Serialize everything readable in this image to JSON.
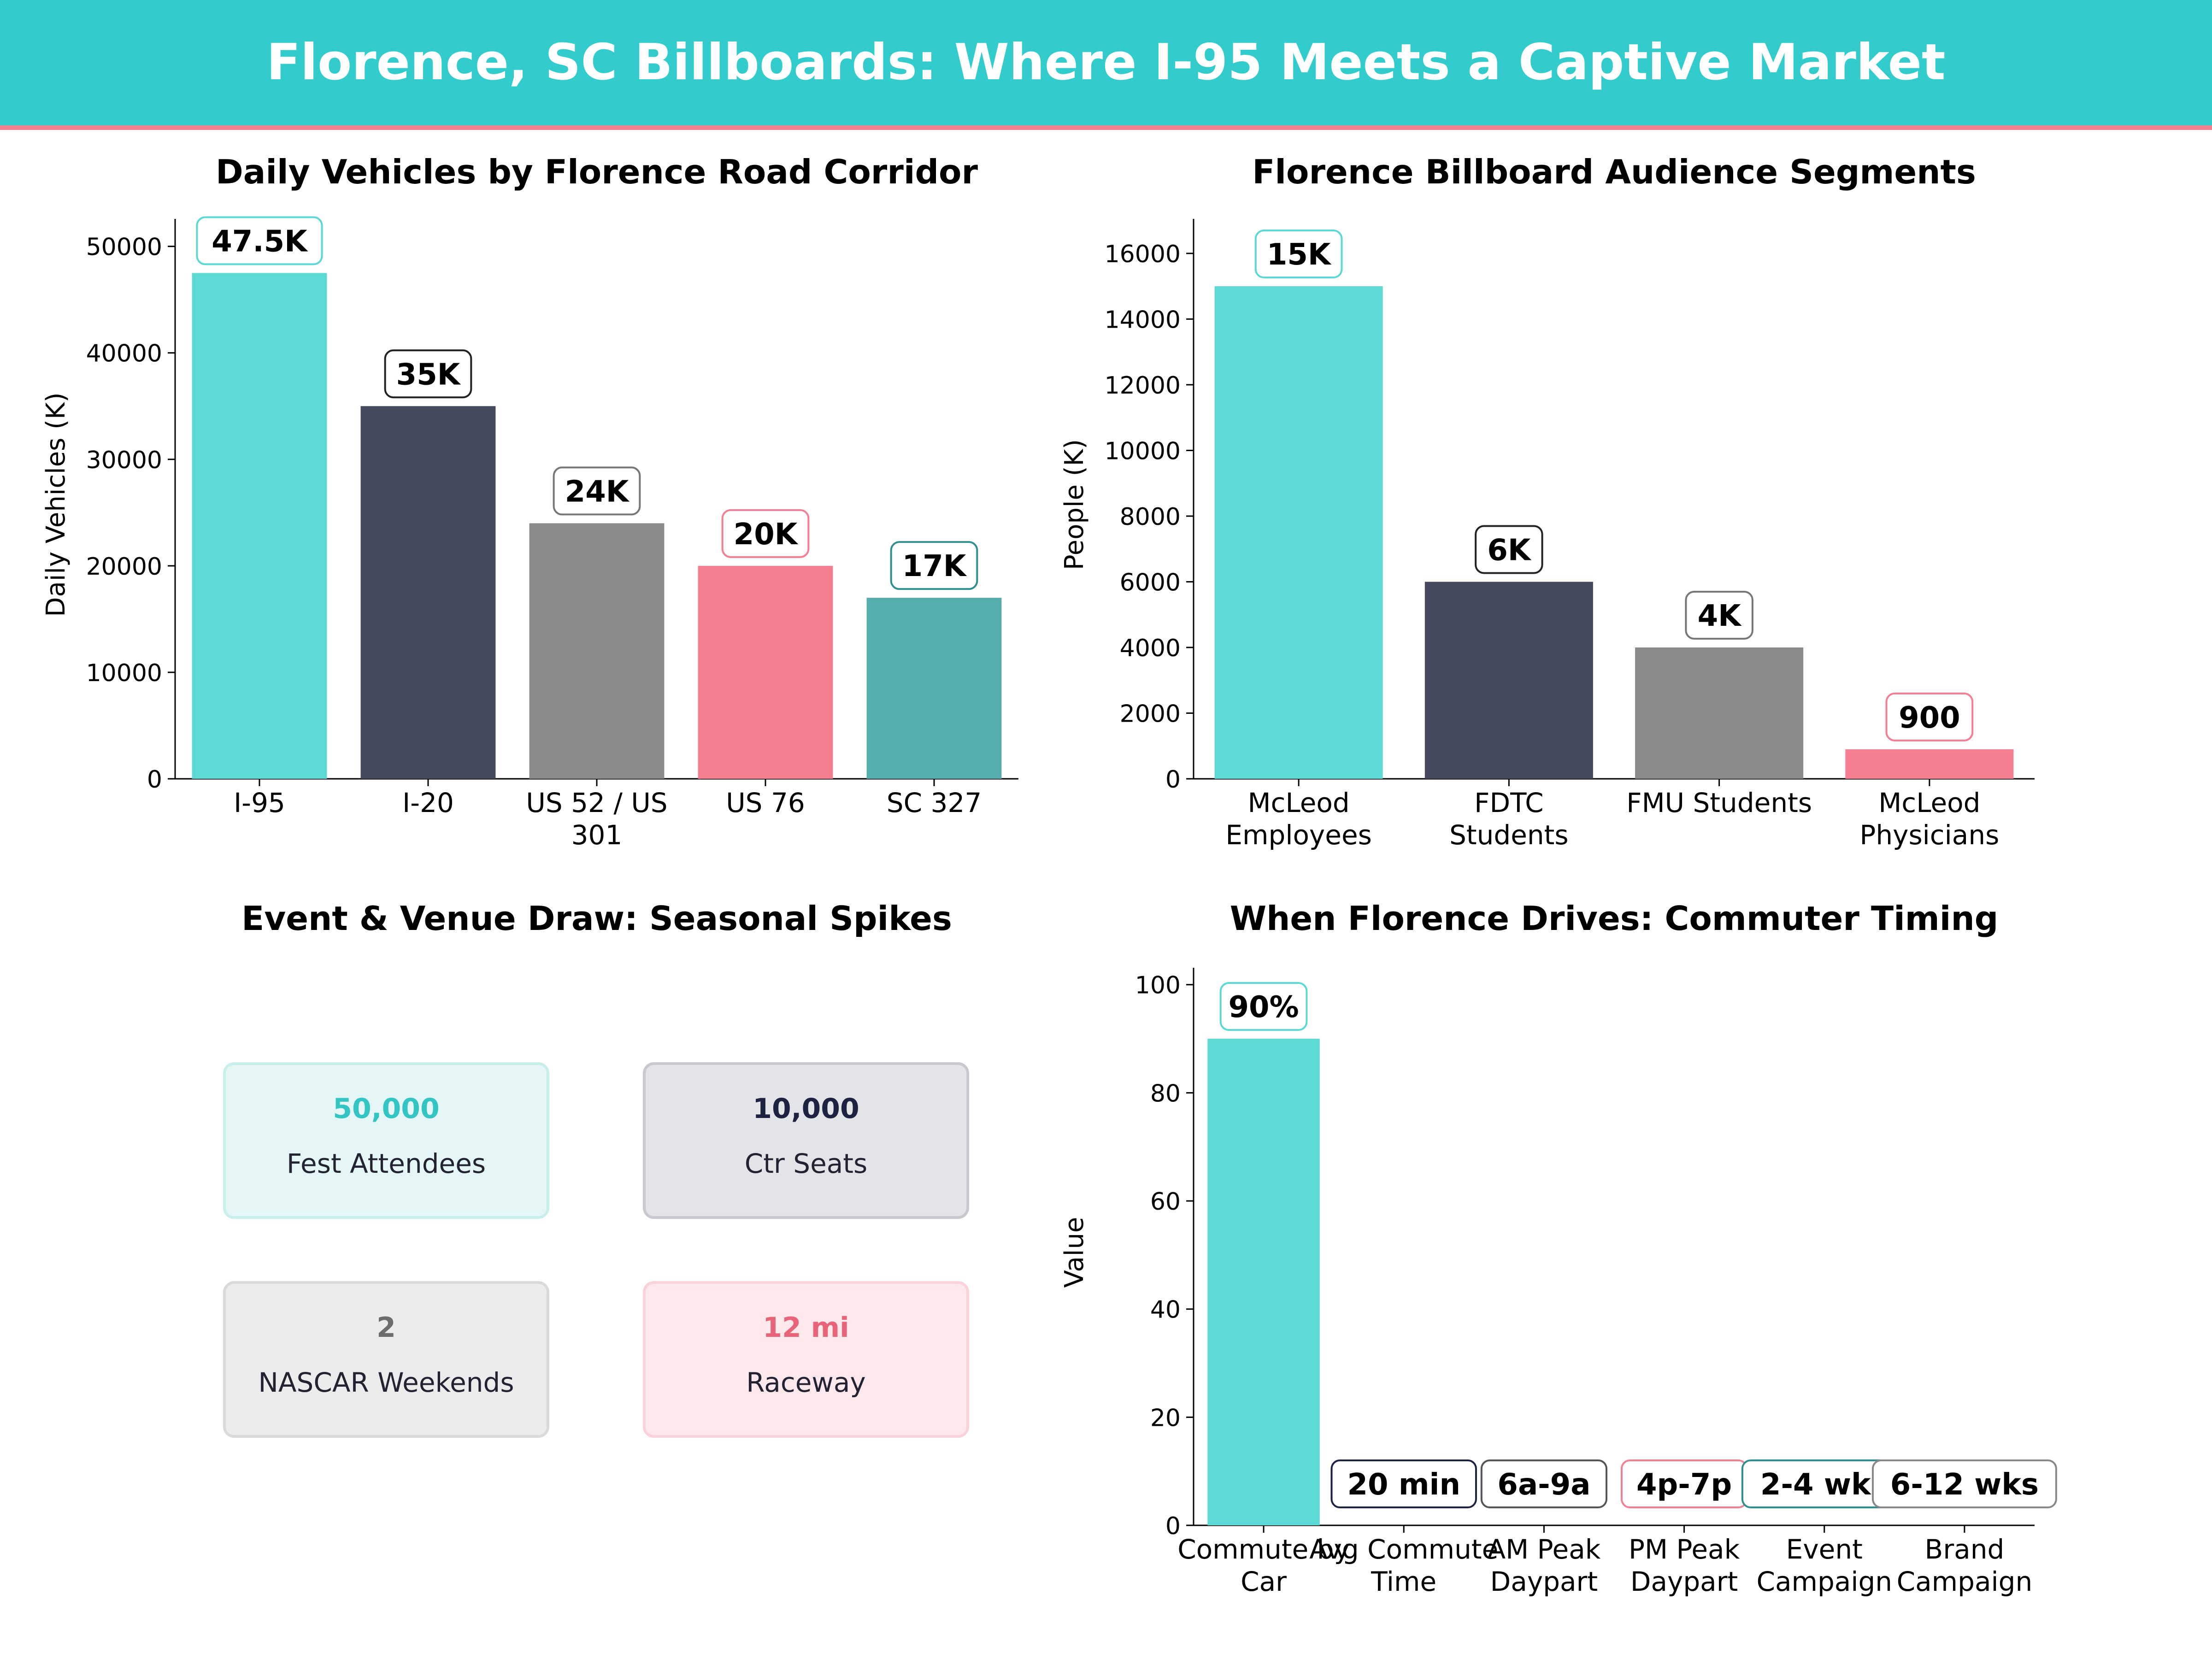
{
  "header": {
    "title": "Florence, SC Billboards: Where I-95 Meets a Captive Market"
  },
  "colors": {
    "teal": "#5cd8d5",
    "navy": "#454a5e",
    "gray": "#8a8a8a",
    "pink": "#f57e93",
    "darkteal": "#56adae",
    "header": "#33cccc"
  },
  "chart_data": [
    {
      "type": "bar",
      "title": "Daily Vehicles by Florence Road Corridor",
      "ylabel": "Daily Vehicles (K)",
      "categories": [
        "I-95",
        "I-20",
        "US 52 / US 301",
        "US 76",
        "SC 327"
      ],
      "values": [
        47500,
        35000,
        24000,
        20000,
        17000
      ],
      "data_labels": [
        "47.5K",
        "35K",
        "24K",
        "20K",
        "17K"
      ],
      "colors": [
        "#5cd8d5",
        "#454a5e",
        "#8a8a8a",
        "#f57e93",
        "#56adae"
      ],
      "yticks": [
        0,
        10000,
        20000,
        30000,
        40000,
        50000
      ],
      "ylim": [
        0,
        51500
      ],
      "grid": false
    },
    {
      "type": "bar",
      "title": "Florence Billboard Audience Segments",
      "ylabel": "People (K)",
      "categories": [
        "McLeod Employees",
        "FDTC Students",
        "FMU Students",
        "McLeod Physicians"
      ],
      "values": [
        15000,
        6000,
        4000,
        900
      ],
      "data_labels": [
        "15K",
        "6K",
        "4K",
        "900"
      ],
      "colors": [
        "#5cd8d5",
        "#454a5e",
        "#8a8a8a",
        "#f57e93"
      ],
      "yticks": [
        0,
        2000,
        4000,
        6000,
        8000,
        10000,
        12000,
        14000,
        16000
      ],
      "ylim": [
        0,
        16700
      ],
      "grid": false
    },
    {
      "type": "table",
      "title": "Event & Venue Draw: Seasonal Spikes",
      "cards": [
        {
          "value": "50,000",
          "label": "Fest Attendees",
          "color": "#33c4c4",
          "bg": "#e4f7f6",
          "border": "#c9efec"
        },
        {
          "value": "10,000",
          "label": "Ctr Seats",
          "color": "#1c2240",
          "bg": "#e3e4e8",
          "border": "#c8c9cf"
        },
        {
          "value": "2",
          "label": "NASCAR Weekends",
          "color": "#6d6d6d",
          "bg": "#ececec",
          "border": "#dadada"
        },
        {
          "value": "12 mi",
          "label": "Raceway",
          "color": "#e86479",
          "bg": "#fde8eb",
          "border": "#f9d3d9"
        }
      ]
    },
    {
      "type": "bar",
      "title": "When Florence Drives: Commuter Timing",
      "ylabel": "Value",
      "categories": [
        "Commute by Car",
        "Avg Commute Time",
        "AM Peak Daypart",
        "PM Peak Daypart",
        "Event Campaign",
        "Brand Campaign"
      ],
      "values": [
        90,
        0,
        0,
        0,
        0,
        0
      ],
      "data_labels": [
        "90%",
        "20 min",
        "6a-9a",
        "4p-7p",
        "2-4 wks",
        "6-12 wks"
      ],
      "colors": [
        "#5cd8d5",
        "#454a5e",
        "#8a8a8a",
        "#f57e93",
        "#56adae",
        "#8a8a8a"
      ],
      "label_borders": [
        "#5cd8d5",
        "#1c2240",
        "#555555",
        "#f57e93",
        "#2f8f8f",
        "#888888"
      ],
      "yticks": [
        0,
        20,
        40,
        60,
        80,
        100
      ],
      "ylim": [
        0,
        101
      ],
      "grid": false
    }
  ]
}
